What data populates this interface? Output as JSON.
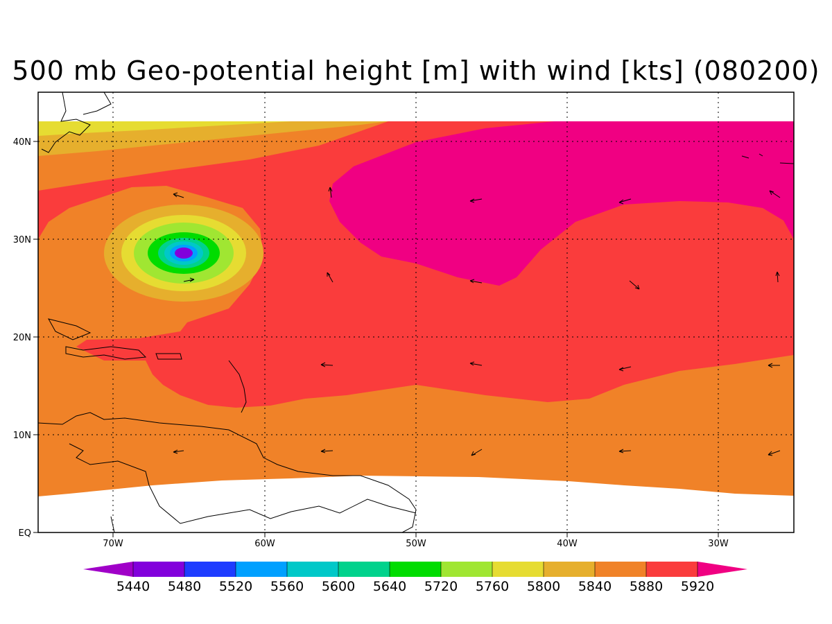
{
  "title": "500 mb Geo-potential height [m] with wind [kts] (080200)",
  "lon_ticks": [
    "70W",
    "60W",
    "50W",
    "40W",
    "30W"
  ],
  "lat_ticks": [
    "EQ",
    "10N",
    "20N",
    "30N",
    "40N"
  ],
  "colorbar": {
    "labels": [
      "5440",
      "5480",
      "5520",
      "5560",
      "5600",
      "5640",
      "5720",
      "5760",
      "5800",
      "5840",
      "5880",
      "5920"
    ],
    "colors": [
      "#a000c8",
      "#8200dc",
      "#1e3cff",
      "#00a0ff",
      "#00c8c8",
      "#00d28c",
      "#00dc00",
      "#a0e632",
      "#e6dc32",
      "#e6af2d",
      "#f08228",
      "#fa3c3c",
      "#f00082"
    ]
  },
  "fill_colors": {
    "c5840": "#e6af2d",
    "c5880": "#f08228",
    "c5920": "#fa3c3c",
    "c5960": "#f00082",
    "c5800": "#e6dc32",
    "c5760": "#a0e632",
    "c5720": "#00dc00",
    "c5640": "#00d28c",
    "c5600": "#00c8c8",
    "c5560": "#00a0ff",
    "c5480": "#8200dc"
  }
}
